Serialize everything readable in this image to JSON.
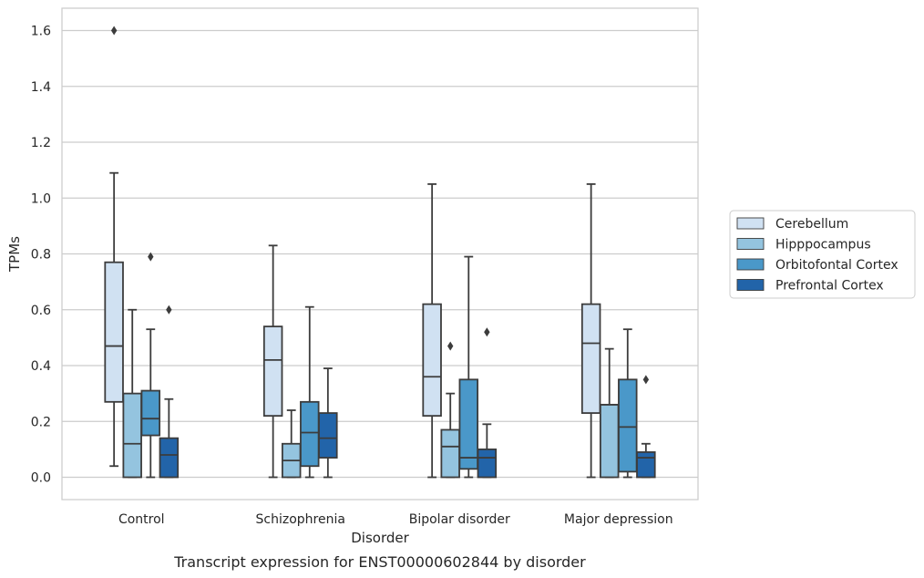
{
  "chart_data": {
    "type": "box",
    "caption": "Transcript expression for ENST00000602844 by disorder",
    "xlabel": "Disorder",
    "ylabel": "TPMs",
    "ylim": [
      -0.08,
      1.68
    ],
    "yticks": [
      0.0,
      0.2,
      0.4,
      0.6,
      0.8,
      1.0,
      1.2,
      1.4,
      1.6
    ],
    "ytick_labels": [
      "0.0",
      "0.2",
      "0.4",
      "0.6",
      "0.8",
      "1.0",
      "1.2",
      "1.4",
      "1.6"
    ],
    "grid": "horizontal",
    "legend_position": "right",
    "categories": [
      "Control",
      "Schizophrenia",
      "Bipolar disorder",
      "Major depression"
    ],
    "series": [
      {
        "name": "Cerebellum",
        "color": "#d0e1f2",
        "boxes": [
          {
            "whisker_low": 0.04,
            "q1": 0.27,
            "median": 0.47,
            "q3": 0.77,
            "whisker_high": 1.09,
            "outliers": [
              1.6
            ]
          },
          {
            "whisker_low": 0.0,
            "q1": 0.22,
            "median": 0.42,
            "q3": 0.54,
            "whisker_high": 0.83,
            "outliers": []
          },
          {
            "whisker_low": 0.0,
            "q1": 0.22,
            "median": 0.36,
            "q3": 0.62,
            "whisker_high": 1.05,
            "outliers": []
          },
          {
            "whisker_low": 0.0,
            "q1": 0.23,
            "median": 0.48,
            "q3": 0.62,
            "whisker_high": 1.05,
            "outliers": []
          }
        ]
      },
      {
        "name": "Hipppocampus",
        "color": "#94c4df",
        "boxes": [
          {
            "whisker_low": 0.0,
            "q1": 0.0,
            "median": 0.12,
            "q3": 0.3,
            "whisker_high": 0.6,
            "outliers": []
          },
          {
            "whisker_low": 0.0,
            "q1": 0.0,
            "median": 0.06,
            "q3": 0.12,
            "whisker_high": 0.24,
            "outliers": []
          },
          {
            "whisker_low": 0.0,
            "q1": 0.0,
            "median": 0.11,
            "q3": 0.17,
            "whisker_high": 0.3,
            "outliers": [
              0.47
            ]
          },
          {
            "whisker_low": 0.0,
            "q1": 0.0,
            "median": 0.26,
            "q3": 0.26,
            "whisker_high": 0.46,
            "outliers": []
          }
        ]
      },
      {
        "name": "Orbitofontal Cortex",
        "color": "#4a98c9",
        "boxes": [
          {
            "whisker_low": 0.0,
            "q1": 0.15,
            "median": 0.21,
            "q3": 0.31,
            "whisker_high": 0.53,
            "outliers": [
              0.79
            ]
          },
          {
            "whisker_low": 0.0,
            "q1": 0.04,
            "median": 0.16,
            "q3": 0.27,
            "whisker_high": 0.61,
            "outliers": []
          },
          {
            "whisker_low": 0.0,
            "q1": 0.03,
            "median": 0.07,
            "q3": 0.35,
            "whisker_high": 0.79,
            "outliers": []
          },
          {
            "whisker_low": 0.0,
            "q1": 0.02,
            "median": 0.18,
            "q3": 0.35,
            "whisker_high": 0.53,
            "outliers": []
          }
        ]
      },
      {
        "name": "Prefrontal Cortex",
        "color": "#2264a9",
        "boxes": [
          {
            "whisker_low": 0.0,
            "q1": 0.0,
            "median": 0.08,
            "q3": 0.14,
            "whisker_high": 0.28,
            "outliers": [
              0.6
            ]
          },
          {
            "whisker_low": 0.0,
            "q1": 0.07,
            "median": 0.14,
            "q3": 0.23,
            "whisker_high": 0.39,
            "outliers": []
          },
          {
            "whisker_low": 0.0,
            "q1": 0.0,
            "median": 0.07,
            "q3": 0.1,
            "whisker_high": 0.19,
            "outliers": [
              0.52
            ]
          },
          {
            "whisker_low": 0.0,
            "q1": 0.0,
            "median": 0.07,
            "q3": 0.09,
            "whisker_high": 0.12,
            "outliers": [
              0.35
            ]
          }
        ]
      }
    ]
  }
}
